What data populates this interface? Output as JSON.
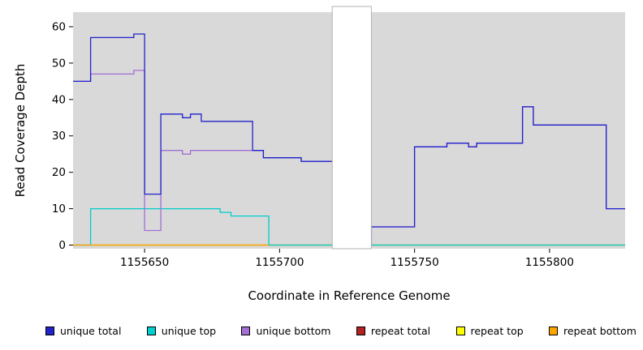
{
  "chart_data": {
    "type": "line",
    "style": "step",
    "title": "",
    "xlabel": "Coordinate in Reference Genome",
    "ylabel": "Read Coverage Depth",
    "xlim": [
      1155623.5,
      1155828
    ],
    "ylim": [
      -1,
      64
    ],
    "x_ticks": [
      1155650,
      1155700,
      1155750,
      1155800
    ],
    "y_ticks": [
      0,
      10,
      20,
      30,
      40,
      50,
      60
    ],
    "grid": false,
    "panel_background": "#d9d9d9",
    "masked_region": {
      "x0": 1155719.5,
      "x1": 1155734,
      "fill": "#ffffff",
      "stroke": "#b3b3b3"
    },
    "series": [
      {
        "name": "repeat total",
        "color": "#b22222",
        "points": [
          [
            1155623.5,
            0
          ],
          [
            1155828,
            0
          ]
        ]
      },
      {
        "name": "repeat top",
        "color": "#ffff00",
        "points": [
          [
            1155623.5,
            0
          ],
          [
            1155828,
            0
          ]
        ]
      },
      {
        "name": "unique top",
        "color": "#00cdcd",
        "points": [
          [
            1155623.5,
            0
          ],
          [
            1155630,
            10
          ],
          [
            1155678,
            9
          ],
          [
            1155682,
            8
          ],
          [
            1155696,
            0
          ],
          [
            1155828,
            0
          ]
        ]
      },
      {
        "name": "unique bottom",
        "color": "#a26fd4",
        "points": [
          [
            1155623.5,
            45
          ],
          [
            1155630,
            47
          ],
          [
            1155646,
            48
          ],
          [
            1155650,
            4
          ],
          [
            1155656,
            26
          ],
          [
            1155664,
            25
          ],
          [
            1155667,
            26
          ],
          [
            1155694,
            24
          ],
          [
            1155708,
            23
          ],
          [
            1155720,
            0
          ],
          [
            1155734,
            5
          ],
          [
            1155750,
            27
          ],
          [
            1155762,
            28
          ],
          [
            1155770,
            27
          ],
          [
            1155773,
            28
          ],
          [
            1155790,
            38
          ],
          [
            1155794,
            33
          ],
          [
            1155821,
            10
          ],
          [
            1155828,
            10
          ]
        ]
      },
      {
        "name": "unique total",
        "color": "#2222cc",
        "points": [
          [
            1155623.5,
            45
          ],
          [
            1155630,
            57
          ],
          [
            1155646,
            58
          ],
          [
            1155650,
            14
          ],
          [
            1155656,
            36
          ],
          [
            1155664,
            35
          ],
          [
            1155667,
            36
          ],
          [
            1155671,
            34
          ],
          [
            1155690,
            26
          ],
          [
            1155694,
            24
          ],
          [
            1155708,
            23
          ],
          [
            1155720,
            0
          ],
          [
            1155734,
            5
          ],
          [
            1155750,
            27
          ],
          [
            1155762,
            28
          ],
          [
            1155770,
            27
          ],
          [
            1155773,
            28
          ],
          [
            1155790,
            38
          ],
          [
            1155794,
            33
          ],
          [
            1155821,
            10
          ],
          [
            1155828,
            10
          ]
        ]
      },
      {
        "name": "repeat bottom",
        "color": "#ffa500",
        "points": [
          [
            1155623.5,
            0
          ],
          [
            1155696,
            0
          ]
        ]
      }
    ],
    "legend": [
      {
        "label": "unique total",
        "color": "#2222cc"
      },
      {
        "label": "unique top",
        "color": "#00cdcd"
      },
      {
        "label": "unique bottom",
        "color": "#a26fd4"
      },
      {
        "label": "repeat total",
        "color": "#b22222"
      },
      {
        "label": "repeat top",
        "color": "#ffff00"
      },
      {
        "label": "repeat bottom",
        "color": "#ffa500"
      }
    ],
    "legend_position": "bottom"
  }
}
